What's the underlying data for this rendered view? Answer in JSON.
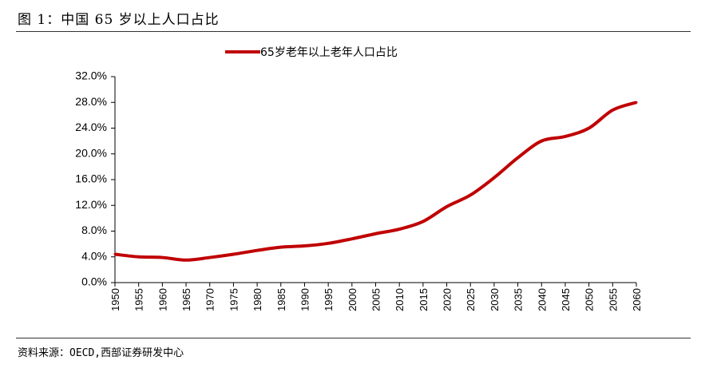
{
  "figure": {
    "title": "图 1：中国 65 岁以上人口占比",
    "source": "资料来源：OECD,西部证券研发中心"
  },
  "chart_data": {
    "type": "line",
    "title": "",
    "xlabel": "",
    "ylabel": "",
    "legend_position": "top-center",
    "grid": false,
    "ylim": [
      0,
      32
    ],
    "y_ticks": [
      "0.0%",
      "4.0%",
      "8.0%",
      "12.0%",
      "16.0%",
      "20.0%",
      "24.0%",
      "28.0%",
      "32.0%"
    ],
    "x": [
      1950,
      1955,
      1960,
      1965,
      1970,
      1975,
      1980,
      1985,
      1990,
      1995,
      2000,
      2005,
      2010,
      2015,
      2020,
      2025,
      2030,
      2035,
      2040,
      2045,
      2050,
      2055,
      2060
    ],
    "x_tick_labels": [
      "1950",
      "1955",
      "1960",
      "1965",
      "1970",
      "1975",
      "1980",
      "1985",
      "1990",
      "1995",
      "2000",
      "2005",
      "2010",
      "2015",
      "2020",
      "2025",
      "2030",
      "2035",
      "2040",
      "2045",
      "2050",
      "2055",
      "2060"
    ],
    "series": [
      {
        "name": "65岁老年以上老年人口占比",
        "color": "#c00000",
        "values": [
          4.4,
          4.0,
          3.9,
          3.5,
          3.9,
          4.4,
          5.0,
          5.5,
          5.7,
          6.1,
          6.8,
          7.6,
          8.3,
          9.5,
          11.8,
          13.6,
          16.3,
          19.4,
          22.0,
          22.7,
          24.0,
          26.8,
          28.0
        ]
      }
    ]
  }
}
